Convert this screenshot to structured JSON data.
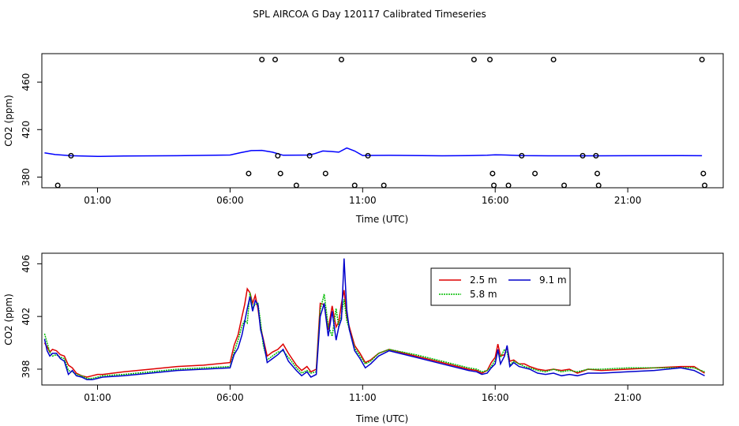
{
  "chart_data": {
    "title": "SPL AIRCOA G  Day 120117  Calibrated Timeseries",
    "panels": [
      {
        "type": "scatter+line",
        "xlabel": "Time (UTC)",
        "ylabel": "CO2 (ppm)",
        "xlim": [
          -1.1,
          24.6
        ],
        "ylim": [
          371,
          484
        ],
        "xticks": [
          1,
          6,
          11,
          16,
          21
        ],
        "xtick_labels": [
          "01:00",
          "06:00",
          "11:00",
          "16:00",
          "21:00"
        ],
        "yticks": [
          380,
          420,
          460
        ],
        "yticks_label": [
          "380",
          "420",
          "460"
        ],
        "series": [
          {
            "name": "mean",
            "color": "#0000ff",
            "x": [
              -1.0,
              -0.6,
              0.0,
              1.0,
              2.0,
              4.0,
              6.0,
              6.4,
              6.8,
              7.2,
              7.6,
              8.0,
              9.0,
              9.2,
              9.5,
              9.8,
              10.1,
              10.4,
              10.7,
              11.0,
              12.0,
              14.0,
              15.0,
              15.7,
              16.0,
              16.4,
              17.0,
              18.0,
              19.0,
              21.0,
              23.0,
              23.8
            ],
            "y": [
              400.4,
              399.0,
              398.0,
              397.4,
              397.8,
              398.0,
              398.6,
              400.6,
              402.3,
              402.5,
              401.0,
              398.4,
              398.6,
              399.8,
              402.0,
              401.6,
              401.0,
              404.5,
              402.0,
              398.2,
              398.3,
              397.9,
              398.1,
              398.4,
              398.8,
              398.6,
              398.1,
              397.9,
              397.9,
              398.0,
              398.1,
              398.0
            ]
          },
          {
            "name": "flags",
            "type": "points",
            "x": [
              0.0,
              -0.5,
              6.7,
              7.2,
              7.7,
              7.8,
              7.9,
              8.5,
              9.0,
              9.6,
              10.2,
              10.7,
              11.2,
              11.8,
              15.2,
              15.8,
              15.9,
              15.95,
              16.5,
              17.0,
              17.5,
              18.2,
              18.6,
              19.3,
              19.8,
              19.85,
              19.9,
              23.8,
              23.85,
              23.9
            ],
            "y": [
              398,
              373,
              383,
              479,
              479,
              398,
              383,
              373,
              398,
              383,
              479,
              373,
              398,
              373,
              479,
              479,
              383,
              373,
              373,
              398,
              383,
              479,
              373,
              398,
              398,
              383,
              373,
              479,
              383,
              373
            ]
          }
        ]
      },
      {
        "type": "line",
        "xlabel": "Time (UTC)",
        "ylabel": "CO2 (ppm)",
        "xlim": [
          -1.1,
          24.6
        ],
        "ylim": [
          396.8,
          406.8
        ],
        "xticks": [
          1,
          6,
          11,
          16,
          21
        ],
        "xtick_labels": [
          "01:00",
          "06:00",
          "11:00",
          "16:00",
          "21:00"
        ],
        "yticks": [
          398,
          402,
          406
        ],
        "ytick_labels": [
          "398",
          "402",
          "406"
        ],
        "legend": [
          {
            "label": "2.5 m",
            "color": "#dd0000",
            "dash": false
          },
          {
            "label": "5.8 m",
            "color": "#00bb00",
            "dash": true
          },
          {
            "label": "9.1 m",
            "color": "#0000cc",
            "dash": false
          }
        ],
        "x_shared": [
          -1.0,
          -0.9,
          -0.8,
          -0.7,
          -0.55,
          -0.4,
          -0.25,
          -0.1,
          0.05,
          0.2,
          0.4,
          0.6,
          0.8,
          1.0,
          1.2,
          2.0,
          3.0,
          4.0,
          5.0,
          6.0,
          6.15,
          6.3,
          6.45,
          6.55,
          6.65,
          6.75,
          6.85,
          6.95,
          7.05,
          7.15,
          7.25,
          7.4,
          7.6,
          7.8,
          8.0,
          8.2,
          8.5,
          8.7,
          8.9,
          9.05,
          9.25,
          9.4,
          9.55,
          9.7,
          9.85,
          10.0,
          10.1,
          10.2,
          10.3,
          10.4,
          10.5,
          10.7,
          10.9,
          11.1,
          11.3,
          11.6,
          12.0,
          13.0,
          14.0,
          15.0,
          15.3,
          15.5,
          15.7,
          15.85,
          16.0,
          16.1,
          16.2,
          16.35,
          16.45,
          16.55,
          16.7,
          16.9,
          17.1,
          17.3,
          17.6,
          17.9,
          18.2,
          18.5,
          18.8,
          19.1,
          19.5,
          20.0,
          21.0,
          22.0,
          23.0,
          23.5,
          23.9
        ],
        "series": [
          {
            "name": "2.5 m",
            "color": "#dd0000",
            "y": [
              400.0,
              399.7,
              399.3,
              399.5,
              399.4,
              399.1,
              399.0,
              398.3,
              398.1,
              397.7,
              397.5,
              397.4,
              397.5,
              397.6,
              397.6,
              397.8,
              398.0,
              398.2,
              398.3,
              398.5,
              399.8,
              400.6,
              402.0,
              402.9,
              404.1,
              403.8,
              403.0,
              403.6,
              402.6,
              401.2,
              400.3,
              399.0,
              399.3,
              399.5,
              399.9,
              399.2,
              398.3,
              397.9,
              398.2,
              397.8,
              398.0,
              403.0,
              402.9,
              401.0,
              402.8,
              401.2,
              401.6,
              403.0,
              404.0,
              402.0,
              401.2,
              399.8,
              399.2,
              398.5,
              398.7,
              399.2,
              399.5,
              399.0,
              398.5,
              398.0,
              397.9,
              397.7,
              397.9,
              398.5,
              398.9,
              399.9,
              399.0,
              399.1,
              399.7,
              398.6,
              398.7,
              398.4,
              398.4,
              398.2,
              398.0,
              397.9,
              398.0,
              397.9,
              398.0,
              397.7,
              398.0,
              397.9,
              398.0,
              398.1,
              398.2,
              398.2,
              397.7
            ]
          },
          {
            "name": "5.8 m",
            "color": "#00bb00",
            "y": [
              400.7,
              400.0,
              399.3,
              399.0,
              399.1,
              398.9,
              398.8,
              397.9,
              397.8,
              397.6,
              397.5,
              397.3,
              397.3,
              397.4,
              397.5,
              397.6,
              397.8,
              398.0,
              398.1,
              398.2,
              399.3,
              400.2,
              401.3,
              401.7,
              401.5,
              403.8,
              402.7,
              402.9,
              403.0,
              401.6,
              399.8,
              398.7,
              399.0,
              399.3,
              399.4,
              398.9,
              398.1,
              397.7,
              397.9,
              397.7,
              397.8,
              402.5,
              403.7,
              401.3,
              400.5,
              402.6,
              401.2,
              402.1,
              403.3,
              401.7,
              401.0,
              399.6,
              399.0,
              398.4,
              398.6,
              399.2,
              399.5,
              399.1,
              398.6,
              398.1,
              398.0,
              397.8,
              397.9,
              398.2,
              398.7,
              399.3,
              398.9,
              399.5,
              399.3,
              398.3,
              398.6,
              398.4,
              398.2,
              398.1,
              397.9,
              397.8,
              398.0,
              397.8,
              397.9,
              397.8,
              398.0,
              398.0,
              398.1,
              398.1,
              398.1,
              398.1,
              397.8
            ]
          },
          {
            "name": "9.1 m",
            "color": "#0000cc",
            "y": [
              400.3,
              399.4,
              399.0,
              399.2,
              399.2,
              398.8,
              398.6,
              397.6,
              397.9,
              397.5,
              397.4,
              397.2,
              397.2,
              397.3,
              397.4,
              397.5,
              397.7,
              397.9,
              398.0,
              398.1,
              399.1,
              399.6,
              400.6,
              401.6,
              402.6,
              403.5,
              402.4,
              403.2,
              402.9,
              401.0,
              400.2,
              398.5,
              398.8,
              399.1,
              399.5,
              398.6,
              397.9,
              397.5,
              397.8,
              397.4,
              397.6,
              402.0,
              403.0,
              400.5,
              402.4,
              400.2,
              401.2,
              401.8,
              406.4,
              402.5,
              401.0,
              399.4,
              398.8,
              398.1,
              398.4,
              399.0,
              399.4,
              398.9,
              398.4,
              397.9,
              397.8,
              397.6,
              397.7,
              398.1,
              398.4,
              399.5,
              398.4,
              399.0,
              399.8,
              398.2,
              398.5,
              398.2,
              398.1,
              398.0,
              397.7,
              397.6,
              397.7,
              397.5,
              397.6,
              397.5,
              397.7,
              397.7,
              397.8,
              397.9,
              398.1,
              397.9,
              397.5
            ]
          }
        ]
      }
    ]
  }
}
